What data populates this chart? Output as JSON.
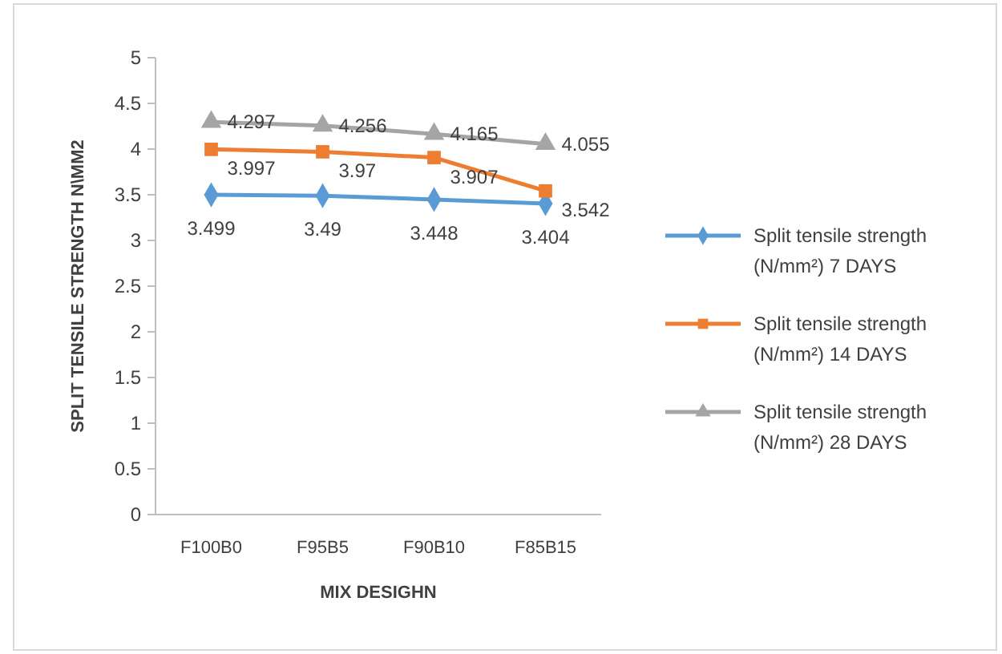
{
  "chart_data": {
    "type": "line",
    "xlabel": "MIX DESIGHN",
    "ylabel": "SPLIT TENSILE STRENGTH N\\MM2",
    "categories": [
      "F100B0",
      "F95B5",
      "F90B10",
      "F85B15"
    ],
    "series": [
      {
        "name": "Split tensile strength (N/mm²) 7 DAYS",
        "color": "#5b9bd5",
        "marker": "diamond",
        "values": [
          3.499,
          3.49,
          3.448,
          3.404
        ]
      },
      {
        "name": "Split tensile strength (N/mm²) 14 DAYS",
        "color": "#ed7d31",
        "marker": "square",
        "values": [
          3.997,
          3.97,
          3.907,
          3.542
        ]
      },
      {
        "name": "Split tensile strength (N/mm²) 28 DAYS",
        "color": "#a5a5a5",
        "marker": "triangle",
        "values": [
          4.297,
          4.256,
          4.165,
          4.055
        ]
      }
    ],
    "ylim": [
      0,
      5
    ],
    "yticks": [
      0,
      0.5,
      1,
      1.5,
      2,
      2.5,
      3,
      3.5,
      4,
      4.5,
      5
    ],
    "data_labels": true,
    "legend": "right",
    "grid": false,
    "line_style": "solid"
  }
}
